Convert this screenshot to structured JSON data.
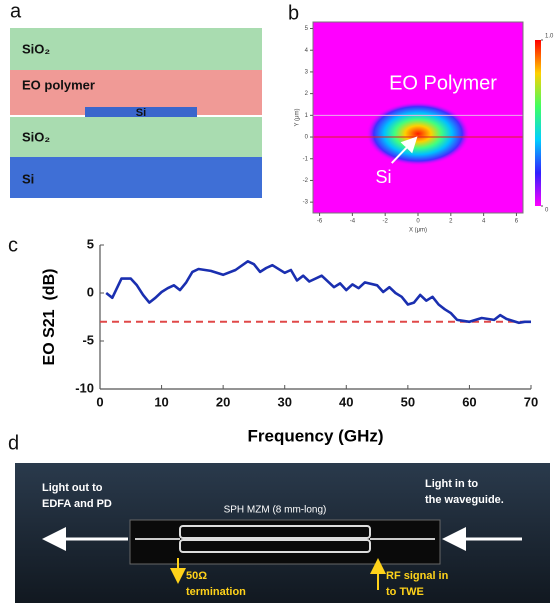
{
  "panels": {
    "a": {
      "label": "a",
      "layers": [
        "SiO₂",
        "EO polymer",
        "Si",
        "SiO₂",
        "Si"
      ]
    },
    "b": {
      "label": "b"
    },
    "c": {
      "label": "c"
    },
    "d": {
      "label": "d",
      "annotations": [
        "Light out to",
        "EDFA and PD",
        "SPH MZM (8 mm-long)",
        "Light in to",
        "the waveguide.",
        "50Ω",
        "termination",
        "RF signal in",
        "to TWE"
      ]
    }
  },
  "chart_data": [
    {
      "type": "heatmap",
      "xlabel": "X (μm)",
      "ylabel": "Y (μm)",
      "xlim": [
        -6.4,
        6.4
      ],
      "xticks": [
        -6,
        -4,
        -2,
        0,
        2,
        4,
        6
      ],
      "ylim": [
        -3.5,
        5.3
      ],
      "yticks": [
        -3,
        -2,
        -1,
        0,
        1,
        2,
        3,
        4,
        5
      ],
      "colorbar": {
        "lim": [
          0,
          1
        ],
        "ticks": [
          0,
          {
            "value": 1,
            "label": "1.0"
          }
        ]
      },
      "annotations": [
        "EO Polymer",
        "Si"
      ],
      "background": "#ff00ff"
    },
    {
      "type": "line",
      "xlabel": "Frequency (GHz)",
      "ylabel": "EO S21  (dB)",
      "xlim": [
        0,
        70
      ],
      "xticks": [
        0,
        10,
        20,
        30,
        40,
        50,
        60,
        70
      ],
      "ylim": [
        -10,
        5
      ],
      "yticks": [
        -10,
        -5,
        0,
        5
      ],
      "x": [
        1,
        2,
        3.5,
        5,
        6,
        7,
        8,
        9,
        10,
        11,
        12,
        13,
        14,
        15,
        16,
        18,
        20,
        22,
        24,
        25,
        26,
        27,
        28,
        30,
        31,
        32,
        33,
        34,
        36,
        38,
        39,
        40,
        41,
        42,
        43,
        45,
        46,
        47,
        48,
        49,
        50,
        51,
        52,
        53,
        54,
        55,
        56,
        57,
        58,
        60,
        62,
        64,
        65,
        66,
        68,
        69,
        70
      ],
      "values": [
        0,
        -0.5,
        1.5,
        1.5,
        0.8,
        -0.2,
        -1,
        -0.5,
        0.1,
        0.5,
        0.8,
        0.3,
        1.1,
        2.2,
        2.5,
        2.3,
        1.9,
        2.4,
        3.3,
        3.0,
        2.2,
        2.6,
        2.9,
        2.1,
        2.4,
        1.3,
        1.8,
        1.2,
        1.8,
        0.6,
        1.0,
        0.3,
        0.9,
        0.5,
        1.1,
        0.8,
        0.1,
        0.6,
        0,
        -0.4,
        -1.2,
        -1,
        -0.2,
        -0.8,
        -0.4,
        -1.2,
        -1.7,
        -2.1,
        -2.8,
        -3,
        -2.6,
        -2.8,
        -2.3,
        -2.7,
        -3.1,
        -3,
        -3
      ],
      "color": "#1a2fb0",
      "hline": {
        "value": -3,
        "color": "#e04848"
      }
    }
  ]
}
